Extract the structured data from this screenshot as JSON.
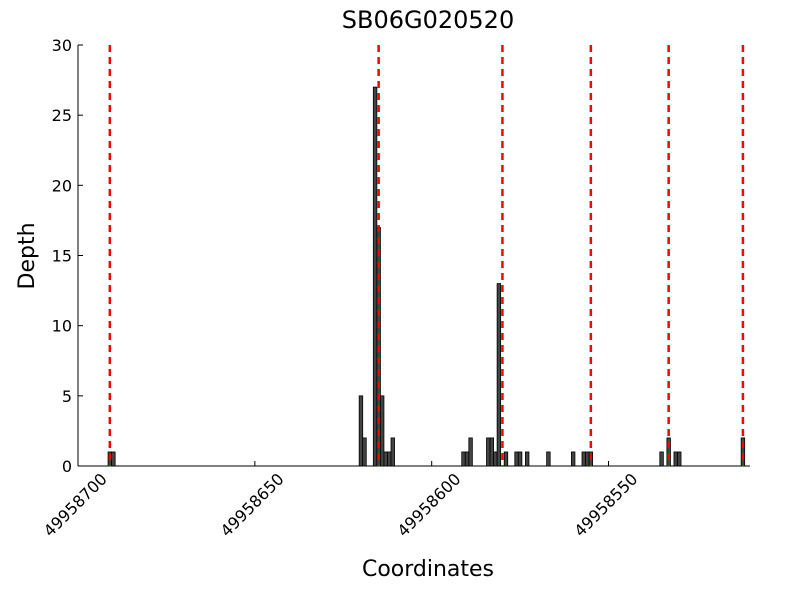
{
  "chart_data": {
    "type": "bar",
    "title": "SB06G020520",
    "xlabel": "Coordinates",
    "ylabel": "Depth",
    "x": [
      49958691,
      49958690,
      49958620,
      49958619,
      49958616,
      49958615,
      49958614,
      49958613,
      49958612,
      49958611,
      49958591,
      49958590,
      49958589,
      49958584,
      49958583,
      49958582,
      49958581,
      49958579,
      49958576,
      49958575,
      49958573,
      49958567,
      49958560,
      49958557,
      49958556,
      49958555,
      49958535,
      49958533,
      49958531,
      49958530,
      49958512
    ],
    "values": [
      1,
      1,
      5,
      2,
      27,
      17,
      5,
      1,
      1,
      2,
      1,
      1,
      2,
      2,
      2,
      1,
      13,
      1,
      1,
      1,
      1,
      1,
      1,
      1,
      1,
      1,
      1,
      2,
      1,
      1,
      2
    ],
    "color": "#444444",
    "edgecolor": "#000000",
    "xlim": [
      49958700,
      49958510
    ],
    "xticks": [
      49958700,
      49958650,
      49958600,
      49958550
    ],
    "ylim": [
      0,
      30
    ],
    "yticks": [
      0,
      5,
      10,
      15,
      20,
      25,
      30
    ],
    "vlines": [
      49958691,
      49958615,
      49958580,
      49958555,
      49958533,
      49958512
    ],
    "vline_color": "#ff0000"
  }
}
